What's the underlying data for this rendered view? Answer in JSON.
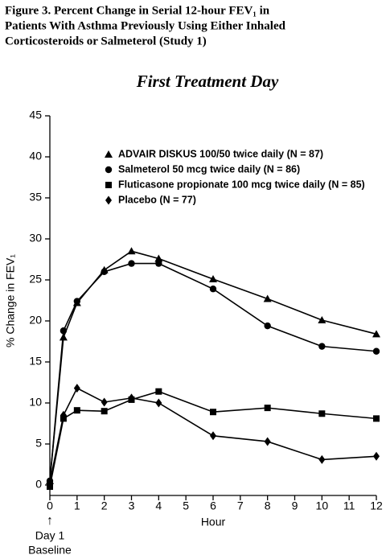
{
  "chart_data": {
    "type": "line",
    "title": [
      "Figure 3. Percent Change in Serial 12-hour FEV₁ in",
      "Patients With Asthma Previously Using Either Inhaled",
      "Corticosteroids or Salmeterol (Study 1)"
    ],
    "subtitle": "First Treatment Day",
    "x_label": "Hour",
    "y_label": "% Change in FEV₁",
    "annotation": [
      "↑",
      "Day 1",
      "Baseline"
    ],
    "x": [
      0,
      0.5,
      1,
      2,
      3,
      4,
      6,
      8,
      10,
      12
    ],
    "series": [
      {
        "name": "ADVAIR DISKUS 100/50 twice daily (N = 87)",
        "marker": "triangle",
        "color": "#000000",
        "values": [
          0.5,
          18,
          22.2,
          26.2,
          28.5,
          27.6,
          25.1,
          22.7,
          20.1,
          18.4
        ]
      },
      {
        "name": "Salmeterol 50 mcg twice daily (N = 86)",
        "marker": "circle",
        "color": "#000000",
        "values": [
          0.5,
          18.8,
          22.4,
          26.0,
          27.0,
          27.0,
          23.9,
          19.4,
          16.9,
          16.3
        ]
      },
      {
        "name": "Fluticasone propionate 100 mcg twice daily (N = 85)",
        "marker": "square",
        "color": "#000000",
        "values": [
          -0.2,
          8.1,
          9.1,
          9.0,
          10.4,
          11.4,
          8.9,
          9.4,
          8.7,
          8.1
        ]
      },
      {
        "name": "Placebo (N = 77)",
        "marker": "diamond",
        "color": "#000000",
        "values": [
          0.3,
          8.5,
          11.8,
          10.1,
          10.6,
          10.0,
          6.0,
          5.3,
          3.1,
          3.5
        ]
      }
    ],
    "xlim": [
      0,
      12
    ],
    "xticks": [
      0,
      1,
      2,
      3,
      4,
      5,
      6,
      7,
      8,
      9,
      10,
      11,
      12
    ],
    "ylim": [
      0,
      45
    ],
    "yticks": [
      0,
      5,
      10,
      15,
      20,
      25,
      30,
      35,
      40,
      45
    ],
    "legend": "upper left"
  }
}
